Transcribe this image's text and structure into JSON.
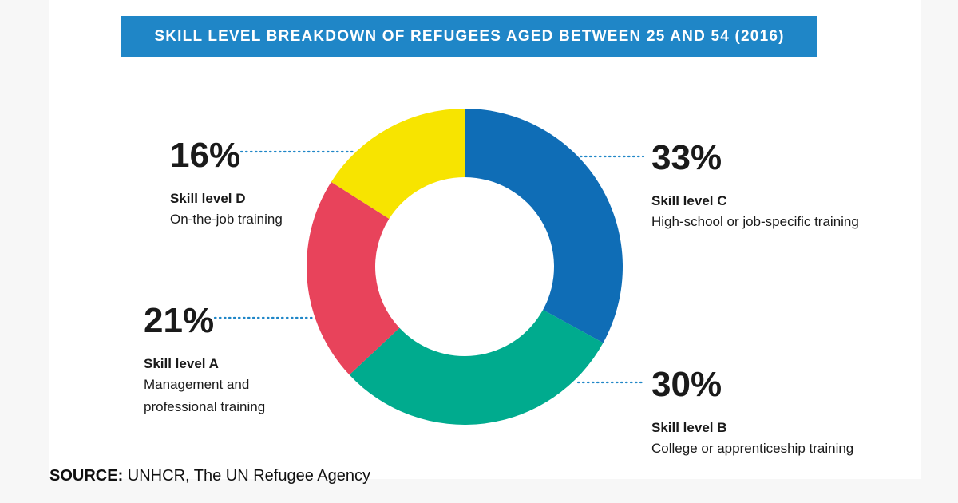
{
  "title": "SKILL LEVEL BREAKDOWN OF REFUGEES AGED BETWEEN 25 AND 54 (2016)",
  "chart_data": {
    "type": "pie",
    "donut": true,
    "slices": [
      {
        "label": "Skill level C",
        "description": "High-school or job-specific training",
        "value": 33,
        "display": "33%",
        "color": "#0f6db6"
      },
      {
        "label": "Skill level B",
        "description": "College or apprenticeship training",
        "value": 30,
        "display": "30%",
        "color": "#00ab8e"
      },
      {
        "label": "Skill level A",
        "description": "Management and professional training",
        "description_lines": [
          "Management and",
          "professional training"
        ],
        "value": 21,
        "display": "21%",
        "color": "#e8435b"
      },
      {
        "label": "Skill level D",
        "description": "On-the-job training",
        "value": 16,
        "display": "16%",
        "color": "#f7e400"
      }
    ],
    "legend": "none",
    "leader_line_color": "#1f86c7"
  },
  "source": {
    "prefix": "SOURCE:",
    "text": " UNHCR, The UN Refugee Agency"
  }
}
